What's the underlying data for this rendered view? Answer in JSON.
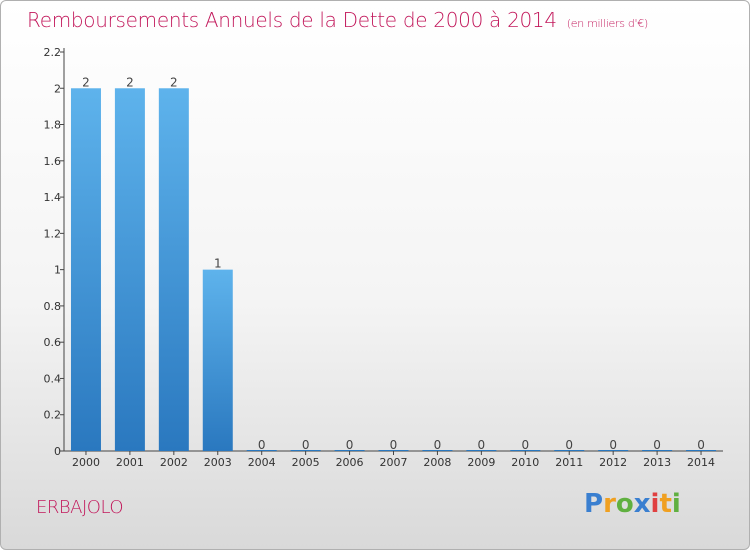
{
  "chart_data": {
    "type": "bar",
    "title": "Remboursements Annuels de la Dette de 2000 à 2014",
    "subtitle": "(en milliers d'€)",
    "categories": [
      "2000",
      "2001",
      "2002",
      "2003",
      "2004",
      "2005",
      "2006",
      "2007",
      "2008",
      "2009",
      "2010",
      "2011",
      "2012",
      "2013",
      "2014"
    ],
    "values": [
      2,
      2,
      2,
      1,
      0,
      0,
      0,
      0,
      0,
      0,
      0,
      0,
      0,
      0,
      0
    ],
    "value_labels": [
      "2",
      "2",
      "2",
      "1",
      "0",
      "0",
      "0",
      "0",
      "0",
      "0",
      "0",
      "0",
      "0",
      "0",
      "0"
    ],
    "ylim": [
      0,
      2.2
    ],
    "yticks": [
      "0",
      "0.2",
      "0.4",
      "0.6",
      "0.8",
      "1",
      "1.2",
      "1.4",
      "1.6",
      "1.8",
      "2",
      "2.2"
    ],
    "ytick_values": [
      0,
      0.2,
      0.4,
      0.6,
      0.8,
      1,
      1.2,
      1.4,
      1.6,
      1.8,
      2,
      2.2
    ],
    "xlabel": "",
    "ylabel": "",
    "bar_color": "#3b8fd6"
  },
  "town_name": "ERBAJOLO",
  "logo": {
    "text": "Proxiti",
    "letters": [
      "P",
      "r",
      "o",
      "x",
      "i",
      "t",
      "i"
    ],
    "colors": [
      "#3a7fd0",
      "#f0a020",
      "#60b040",
      "#3a7fd0",
      "#e04040",
      "#f0a020",
      "#60b040"
    ]
  }
}
